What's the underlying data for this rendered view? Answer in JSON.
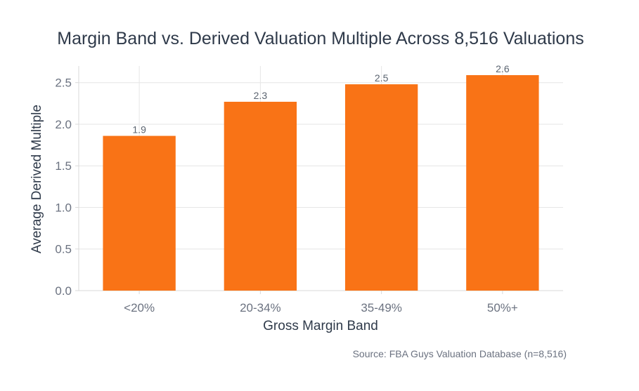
{
  "chart_data": {
    "type": "bar",
    "title": "Margin Band vs. Derived Valuation Multiple Across 8,516 Valuations",
    "xlabel": "Gross Margin Band",
    "ylabel": "Average Derived Multiple",
    "categories": [
      "<20%",
      "20-34%",
      "35-49%",
      "50%+"
    ],
    "values": [
      1.86,
      2.27,
      2.48,
      2.59
    ],
    "value_labels": [
      "1.9",
      "2.3",
      "2.5",
      "2.6"
    ],
    "ylim": [
      0,
      2.7
    ],
    "yticks": [
      0,
      0.5,
      1,
      1.5,
      2,
      2.5
    ],
    "ytick_labels": [
      "0.0",
      "0.5",
      "1.0",
      "1.5",
      "2.0",
      "2.5"
    ],
    "bar_color": "#f97316",
    "grid": true,
    "source": "Source: FBA Guys Valuation Database (n=8,516)"
  }
}
